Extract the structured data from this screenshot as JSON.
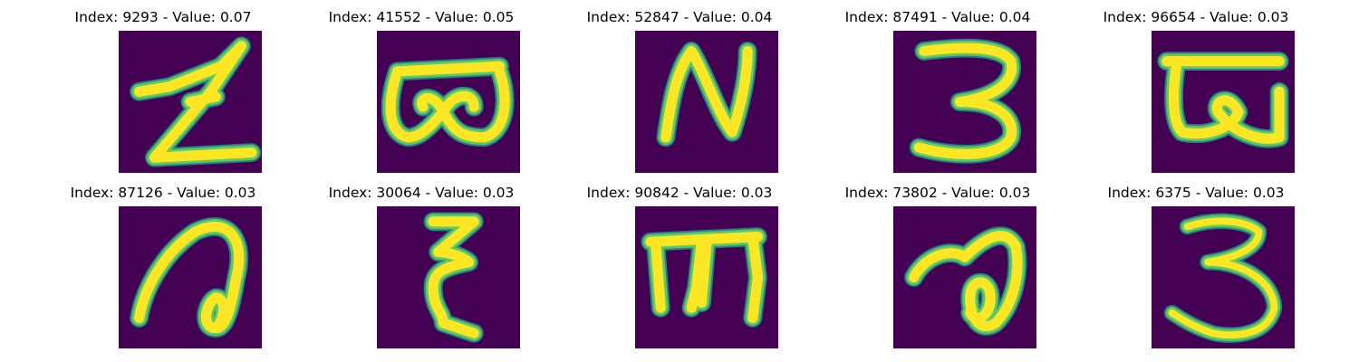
{
  "colors": {
    "background": "#440154",
    "stroke_edge": "#21918c",
    "stroke_mid": "#5ec962",
    "stroke_core": "#fde725"
  },
  "panels": [
    {
      "title": "Index: 9293 - Value: 0.07",
      "glyph": "zig-z"
    },
    {
      "title": "Index: 41552 - Value: 0.05",
      "glyph": "double-loop"
    },
    {
      "title": "Index: 52847 - Value: 0.04",
      "glyph": "n-shape"
    },
    {
      "title": "Index: 87491 - Value: 0.04",
      "glyph": "three"
    },
    {
      "title": "Index: 96654 - Value: 0.03",
      "glyph": "bar-hook"
    },
    {
      "title": "Index: 87126 - Value: 0.03",
      "glyph": "curl-a"
    },
    {
      "title": "Index: 30064 - Value: 0.03",
      "glyph": "epsilon"
    },
    {
      "title": "Index: 90842 - Value: 0.03",
      "glyph": "m-bar"
    },
    {
      "title": "Index: 73802 - Value: 0.03",
      "glyph": "blob-loop"
    },
    {
      "title": "Index: 6375 - Value: 0.03",
      "glyph": "three-thin"
    }
  ]
}
